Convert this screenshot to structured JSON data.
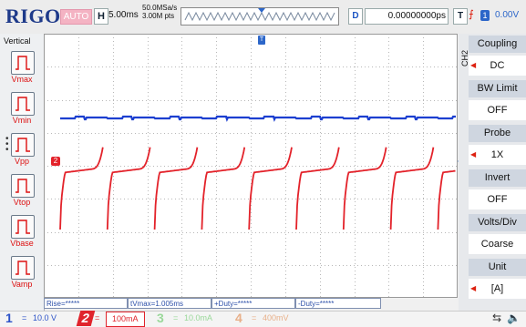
{
  "brand": "RIGOL",
  "top_bar": {
    "mode": "AUTO",
    "horizontal_label": "H",
    "time_base": "5.00ms",
    "sample_rate": "50.0MSa/s",
    "mem_depth": "3.00M pts",
    "delay_label": "D",
    "delay_value": "0.00000000ps",
    "trigger_label": "T",
    "trigger_source": "1",
    "trigger_level": "0.00V"
  },
  "left_menu": {
    "title": "Vertical",
    "items": [
      {
        "label": "Vmax"
      },
      {
        "label": "Vmin"
      },
      {
        "label": "Vpp"
      },
      {
        "label": "Vtop"
      },
      {
        "label": "Vbase"
      },
      {
        "label": "Vamp"
      }
    ]
  },
  "right_menu": {
    "channel_tag": "CH2",
    "items": [
      {
        "title": "Coupling",
        "value": "DC",
        "has_arrow": true
      },
      {
        "title": "BW Limit",
        "value": "OFF",
        "has_arrow": false
      },
      {
        "title": "Probe",
        "value": "1X",
        "has_arrow": true
      },
      {
        "title": "Invert",
        "value": "OFF",
        "has_arrow": false
      },
      {
        "title": "Volts/Div",
        "value": "Coarse",
        "has_arrow": false
      },
      {
        "title": "Unit",
        "value": "[A]",
        "has_arrow": true
      }
    ]
  },
  "measurements": {
    "rise": "Rise=*****",
    "tvmax": "tVmax=1.005ms",
    "plus_duty": "+Duty=*****",
    "minus_duty": "-Duty=*****"
  },
  "channels": [
    {
      "num": "1",
      "value": "10.0 V",
      "color": "#2c52c8"
    },
    {
      "num": "2",
      "value": "100mA",
      "color": "#e0242c"
    },
    {
      "num": "3",
      "value": "10.0mA",
      "color": "#9ad89a"
    },
    {
      "num": "4",
      "value": "400mV",
      "color": "#e8b08a"
    }
  ],
  "waveform_markers": {
    "ch2_marker": "2",
    "trigger_marker": "T"
  },
  "colors": {
    "ch1_trace": "#1c3fd0",
    "ch2_trace": "#e3222a",
    "grid": "#b8b8b8",
    "brand": "#1e3a8a"
  }
}
